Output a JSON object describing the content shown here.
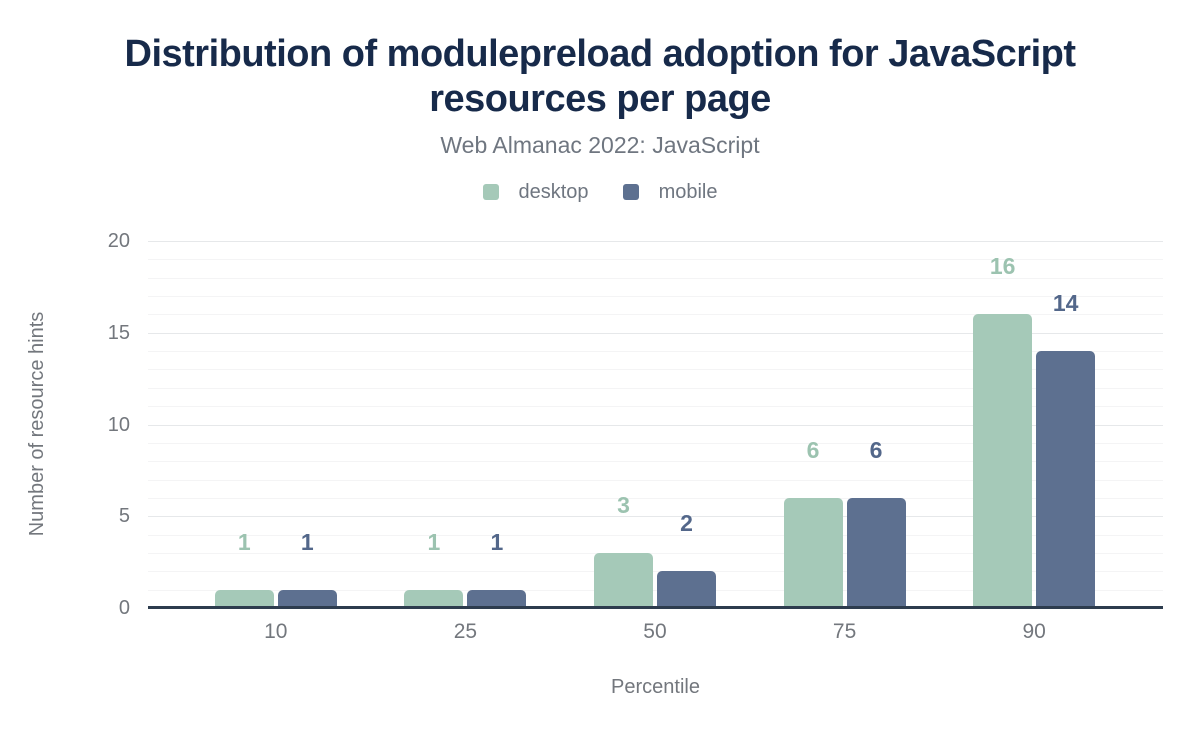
{
  "header": {
    "title": "Distribution of modulepreload adoption for JavaScript resources per page",
    "subtitle": "Web Almanac 2022: JavaScript"
  },
  "legend": {
    "items": [
      {
        "label": "desktop",
        "color": "#a5c9b8"
      },
      {
        "label": "mobile",
        "color": "#5d7090"
      }
    ]
  },
  "chart_data": {
    "type": "bar",
    "title": "Distribution of modulepreload adoption for JavaScript resources per page",
    "subtitle": "Web Almanac 2022: JavaScript",
    "categories": [
      "10",
      "25",
      "50",
      "75",
      "90"
    ],
    "series": [
      {
        "name": "desktop",
        "color": "#a5c9b8",
        "label_color": "#9cc3b0",
        "values": [
          1,
          1,
          3,
          6,
          16
        ]
      },
      {
        "name": "mobile",
        "color": "#5d7090",
        "label_color": "#53678a",
        "values": [
          1,
          1,
          2,
          6,
          14
        ]
      }
    ],
    "xlabel": "Percentile",
    "ylabel": "Number of resource hints",
    "ylim": [
      0,
      20
    ],
    "yticks": [
      0,
      5,
      10,
      15,
      20
    ],
    "grid": {
      "orientation": "horizontal",
      "minor_step": 1,
      "major_step": 5
    },
    "legend_position": "top",
    "bar_value_labels": true
  },
  "colors": {
    "title": "#172a4a",
    "text_gray": "#73777d",
    "axis_line": "#2d3c4e",
    "grid_minor": "#f4f4f5",
    "grid_major": "#e6e8ea",
    "background": "#ffffff"
  }
}
